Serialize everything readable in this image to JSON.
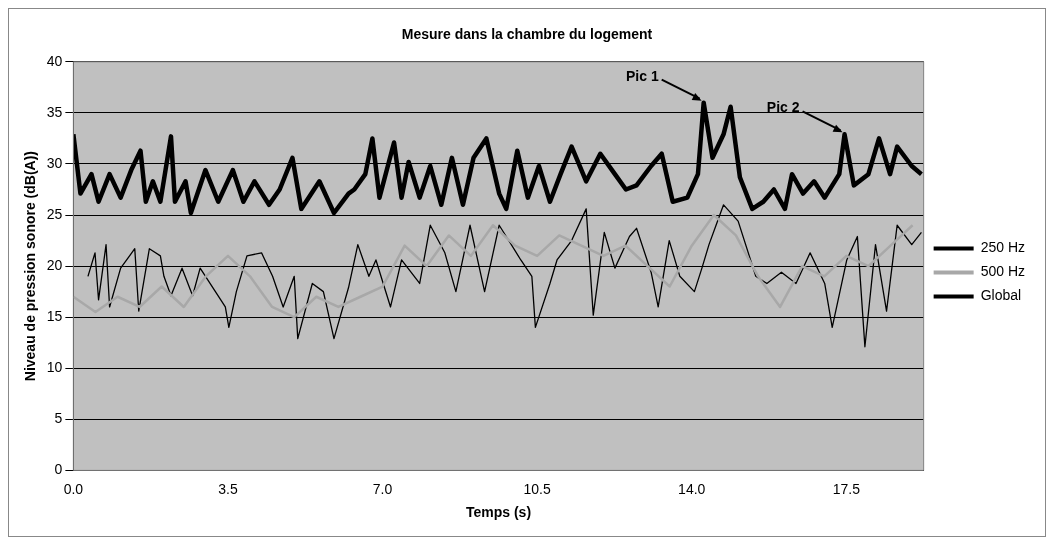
{
  "chart_data": {
    "type": "line",
    "title": "Mesure dans la chambre du logement",
    "xlabel": "Temps (s)",
    "ylabel": "Niveau de pression sonore (dB(A))",
    "xlim": [
      0,
      19.25
    ],
    "xticks": [
      {
        "value": 0,
        "label": "0.0"
      },
      {
        "value": 3.5,
        "label": "3.5"
      },
      {
        "value": 7,
        "label": "7.0"
      },
      {
        "value": 10.5,
        "label": "10.5"
      },
      {
        "value": 14,
        "label": "14.0"
      },
      {
        "value": 17.5,
        "label": "17.5"
      }
    ],
    "ylim": [
      0,
      40
    ],
    "yticks": [
      0,
      5,
      10,
      15,
      20,
      25,
      30,
      35,
      40
    ],
    "grid": "y",
    "legend": "right",
    "marker": "none",
    "line_style": "solid",
    "annotations": [
      {
        "text": "Pic 1",
        "x": 14.27,
        "y": 36
      },
      {
        "text": "Pic 2",
        "x": 17.46,
        "y": 32.9
      }
    ],
    "series": [
      {
        "name": "250 Hz",
        "color": "#000000",
        "x": [
          0.33,
          0.49,
          0.57,
          0.74,
          0.82,
          1.07,
          1.39,
          1.48,
          1.72,
          1.97,
          2.05,
          2.21,
          2.46,
          2.7,
          2.87,
          3.44,
          3.52,
          3.69,
          3.93,
          4.26,
          4.51,
          4.75,
          5.0,
          5.08,
          5.41,
          5.66,
          5.9,
          6.23,
          6.44,
          6.69,
          6.85,
          7.18,
          7.43,
          7.84,
          8.08,
          8.41,
          8.66,
          8.98,
          9.31,
          9.64,
          9.8,
          10.13,
          10.38,
          10.46,
          10.79,
          10.95,
          11.28,
          11.61,
          11.77,
          12.02,
          12.26,
          12.59,
          12.75,
          13.08,
          13.24,
          13.49,
          13.73,
          14.06,
          14.23,
          14.39,
          14.55,
          14.72,
          15.05,
          15.45,
          15.7,
          16.03,
          16.36,
          16.68,
          17.01,
          17.18,
          17.51,
          17.75,
          17.92,
          18.16,
          18.41,
          18.65,
          18.98,
          19.2
        ],
        "values": [
          19.0,
          21.3,
          16.7,
          22.1,
          16.0,
          19.8,
          21.7,
          15.6,
          21.7,
          21.0,
          19.0,
          17.1,
          19.8,
          17.1,
          19.8,
          16.0,
          14.0,
          17.5,
          21.0,
          21.3,
          19.0,
          16.0,
          19.0,
          12.9,
          18.3,
          17.5,
          12.9,
          17.9,
          22.1,
          19.0,
          20.6,
          16.0,
          20.6,
          18.3,
          24.0,
          21.3,
          17.5,
          24.0,
          17.5,
          24.0,
          22.9,
          20.6,
          19.0,
          14.0,
          18.3,
          20.6,
          22.5,
          25.6,
          15.2,
          23.3,
          19.8,
          22.9,
          23.7,
          19.4,
          16.0,
          22.5,
          19.0,
          17.5,
          19.8,
          22.1,
          24.0,
          26.0,
          24.4,
          19.0,
          18.3,
          19.4,
          18.3,
          21.3,
          18.3,
          14.0,
          20.6,
          22.9,
          12.1,
          22.1,
          15.6,
          24.0,
          22.1,
          23.3
        ]
      },
      {
        "name": "500 Hz",
        "color": "#a8a8a8",
        "x": [
          0,
          0.5,
          1,
          1.5,
          2,
          2.5,
          3,
          3.5,
          4,
          4.5,
          5,
          5.5,
          6,
          6.5,
          7,
          7.5,
          8,
          8.5,
          9,
          9.5,
          10,
          10.5,
          11,
          11.5,
          12,
          12.5,
          13,
          13.5,
          14,
          14.5,
          15,
          15.5,
          16,
          16.5,
          17,
          17.5,
          18,
          18.5,
          19
        ],
        "values": [
          17,
          15.5,
          17,
          16,
          18,
          16,
          19,
          21,
          19,
          16,
          15,
          17,
          16,
          17,
          18,
          22,
          20,
          23,
          21,
          24,
          22,
          21,
          23,
          22,
          21,
          22,
          20,
          18,
          22,
          25,
          23,
          19,
          16,
          20,
          19,
          21,
          20,
          22,
          24
        ]
      },
      {
        "name": "Global",
        "color": "#000000",
        "x": [
          0,
          0.16,
          0.41,
          0.57,
          0.82,
          1.07,
          1.31,
          1.52,
          1.64,
          1.8,
          1.97,
          2.21,
          2.3,
          2.54,
          2.66,
          2.99,
          3.28,
          3.61,
          3.85,
          4.1,
          4.43,
          4.67,
          4.96,
          5.16,
          5.57,
          5.9,
          6.23,
          6.36,
          6.61,
          6.77,
          6.93,
          7.26,
          7.43,
          7.59,
          7.84,
          8.08,
          8.33,
          8.57,
          8.82,
          9.06,
          9.35,
          9.64,
          9.8,
          10.05,
          10.29,
          10.54,
          10.79,
          11.03,
          11.28,
          11.61,
          11.93,
          12.26,
          12.51,
          12.75,
          13.08,
          13.32,
          13.57,
          13.9,
          14.14,
          14.27,
          14.47,
          14.72,
          14.88,
          15.09,
          15.37,
          15.62,
          15.86,
          16.11,
          16.27,
          16.52,
          16.77,
          17.01,
          17.34,
          17.46,
          17.67,
          18.0,
          18.24,
          18.49,
          18.65,
          18.98,
          19.2
        ],
        "values": [
          32.9,
          27.1,
          29.0,
          26.3,
          29.0,
          26.7,
          29.4,
          31.3,
          26.3,
          28.3,
          26.3,
          32.7,
          26.3,
          28.3,
          25.2,
          29.4,
          26.3,
          29.4,
          26.3,
          28.3,
          26.0,
          27.5,
          30.6,
          25.6,
          28.3,
          25.2,
          27.1,
          27.5,
          29.0,
          32.5,
          26.7,
          32.1,
          26.7,
          30.2,
          26.7,
          29.8,
          26.0,
          30.6,
          26.0,
          30.6,
          32.5,
          27.1,
          25.6,
          31.3,
          26.7,
          29.8,
          26.3,
          29.0,
          31.7,
          28.3,
          31.0,
          29.0,
          27.5,
          27.9,
          29.8,
          31.0,
          26.3,
          26.7,
          29.0,
          36.0,
          30.6,
          32.9,
          35.6,
          28.7,
          25.6,
          26.3,
          27.5,
          25.6,
          29.0,
          27.1,
          28.3,
          26.7,
          29.0,
          32.9,
          27.9,
          29.0,
          32.5,
          29.0,
          31.7,
          29.8,
          29.0
        ]
      }
    ]
  }
}
